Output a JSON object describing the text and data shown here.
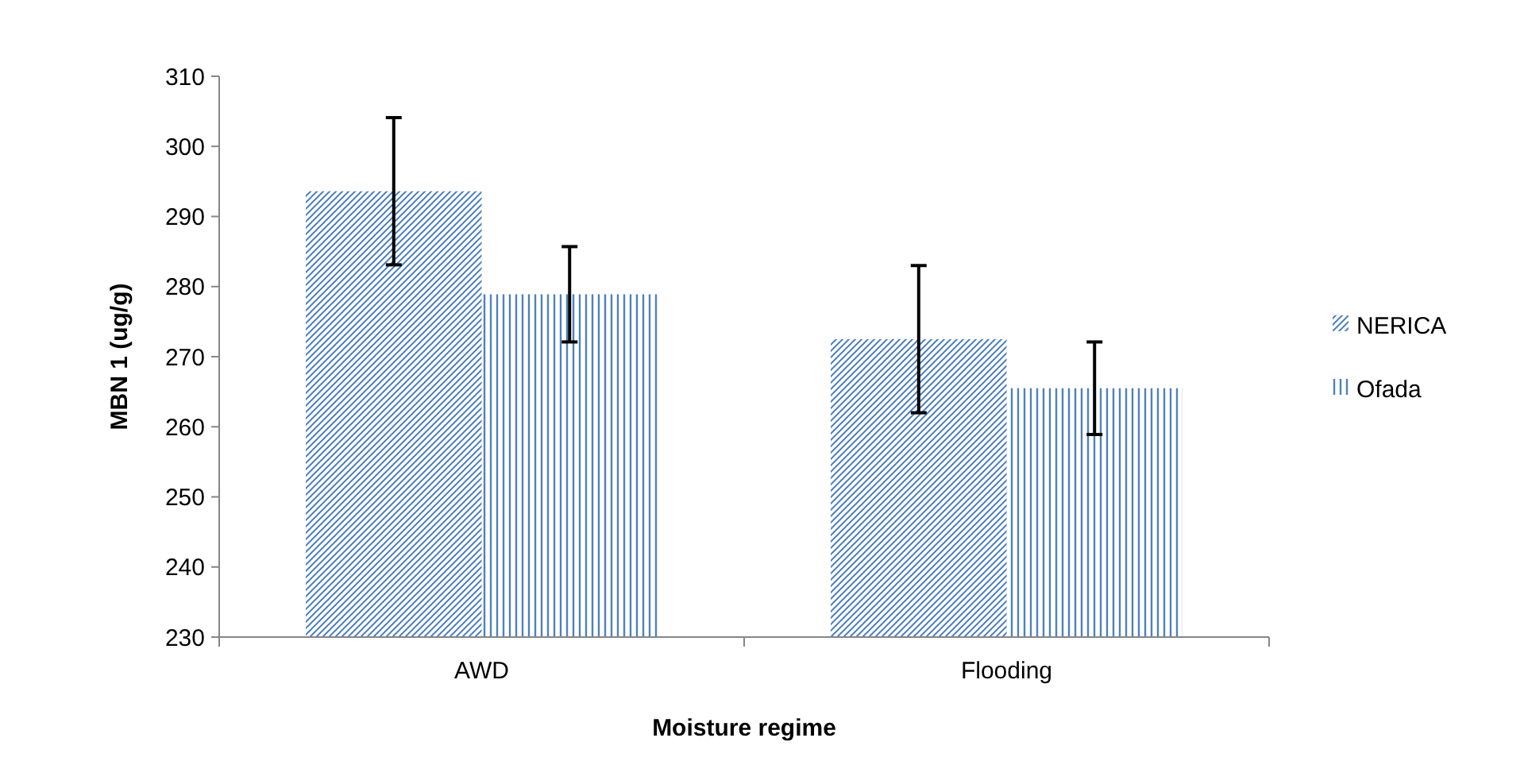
{
  "chart_data": {
    "type": "bar",
    "xlabel": "Moisture regime",
    "ylabel": "MBN 1 (ug/g)",
    "categories": [
      "AWD",
      "Flooding"
    ],
    "series": [
      {
        "name": "NERICA",
        "color": "#4f81bd",
        "values": [
          293.6,
          272.5
        ],
        "errors": [
          10.5,
          10.5
        ]
      },
      {
        "name": "Ofada",
        "color": "#4f81bd",
        "values": [
          278.9,
          265.5
        ],
        "errors": [
          6.8,
          6.6
        ]
      }
    ],
    "ylim": [
      230,
      310
    ],
    "yticks": [
      230,
      240,
      250,
      260,
      270,
      280,
      290,
      300,
      310
    ],
    "grid": false,
    "legend": "right"
  }
}
